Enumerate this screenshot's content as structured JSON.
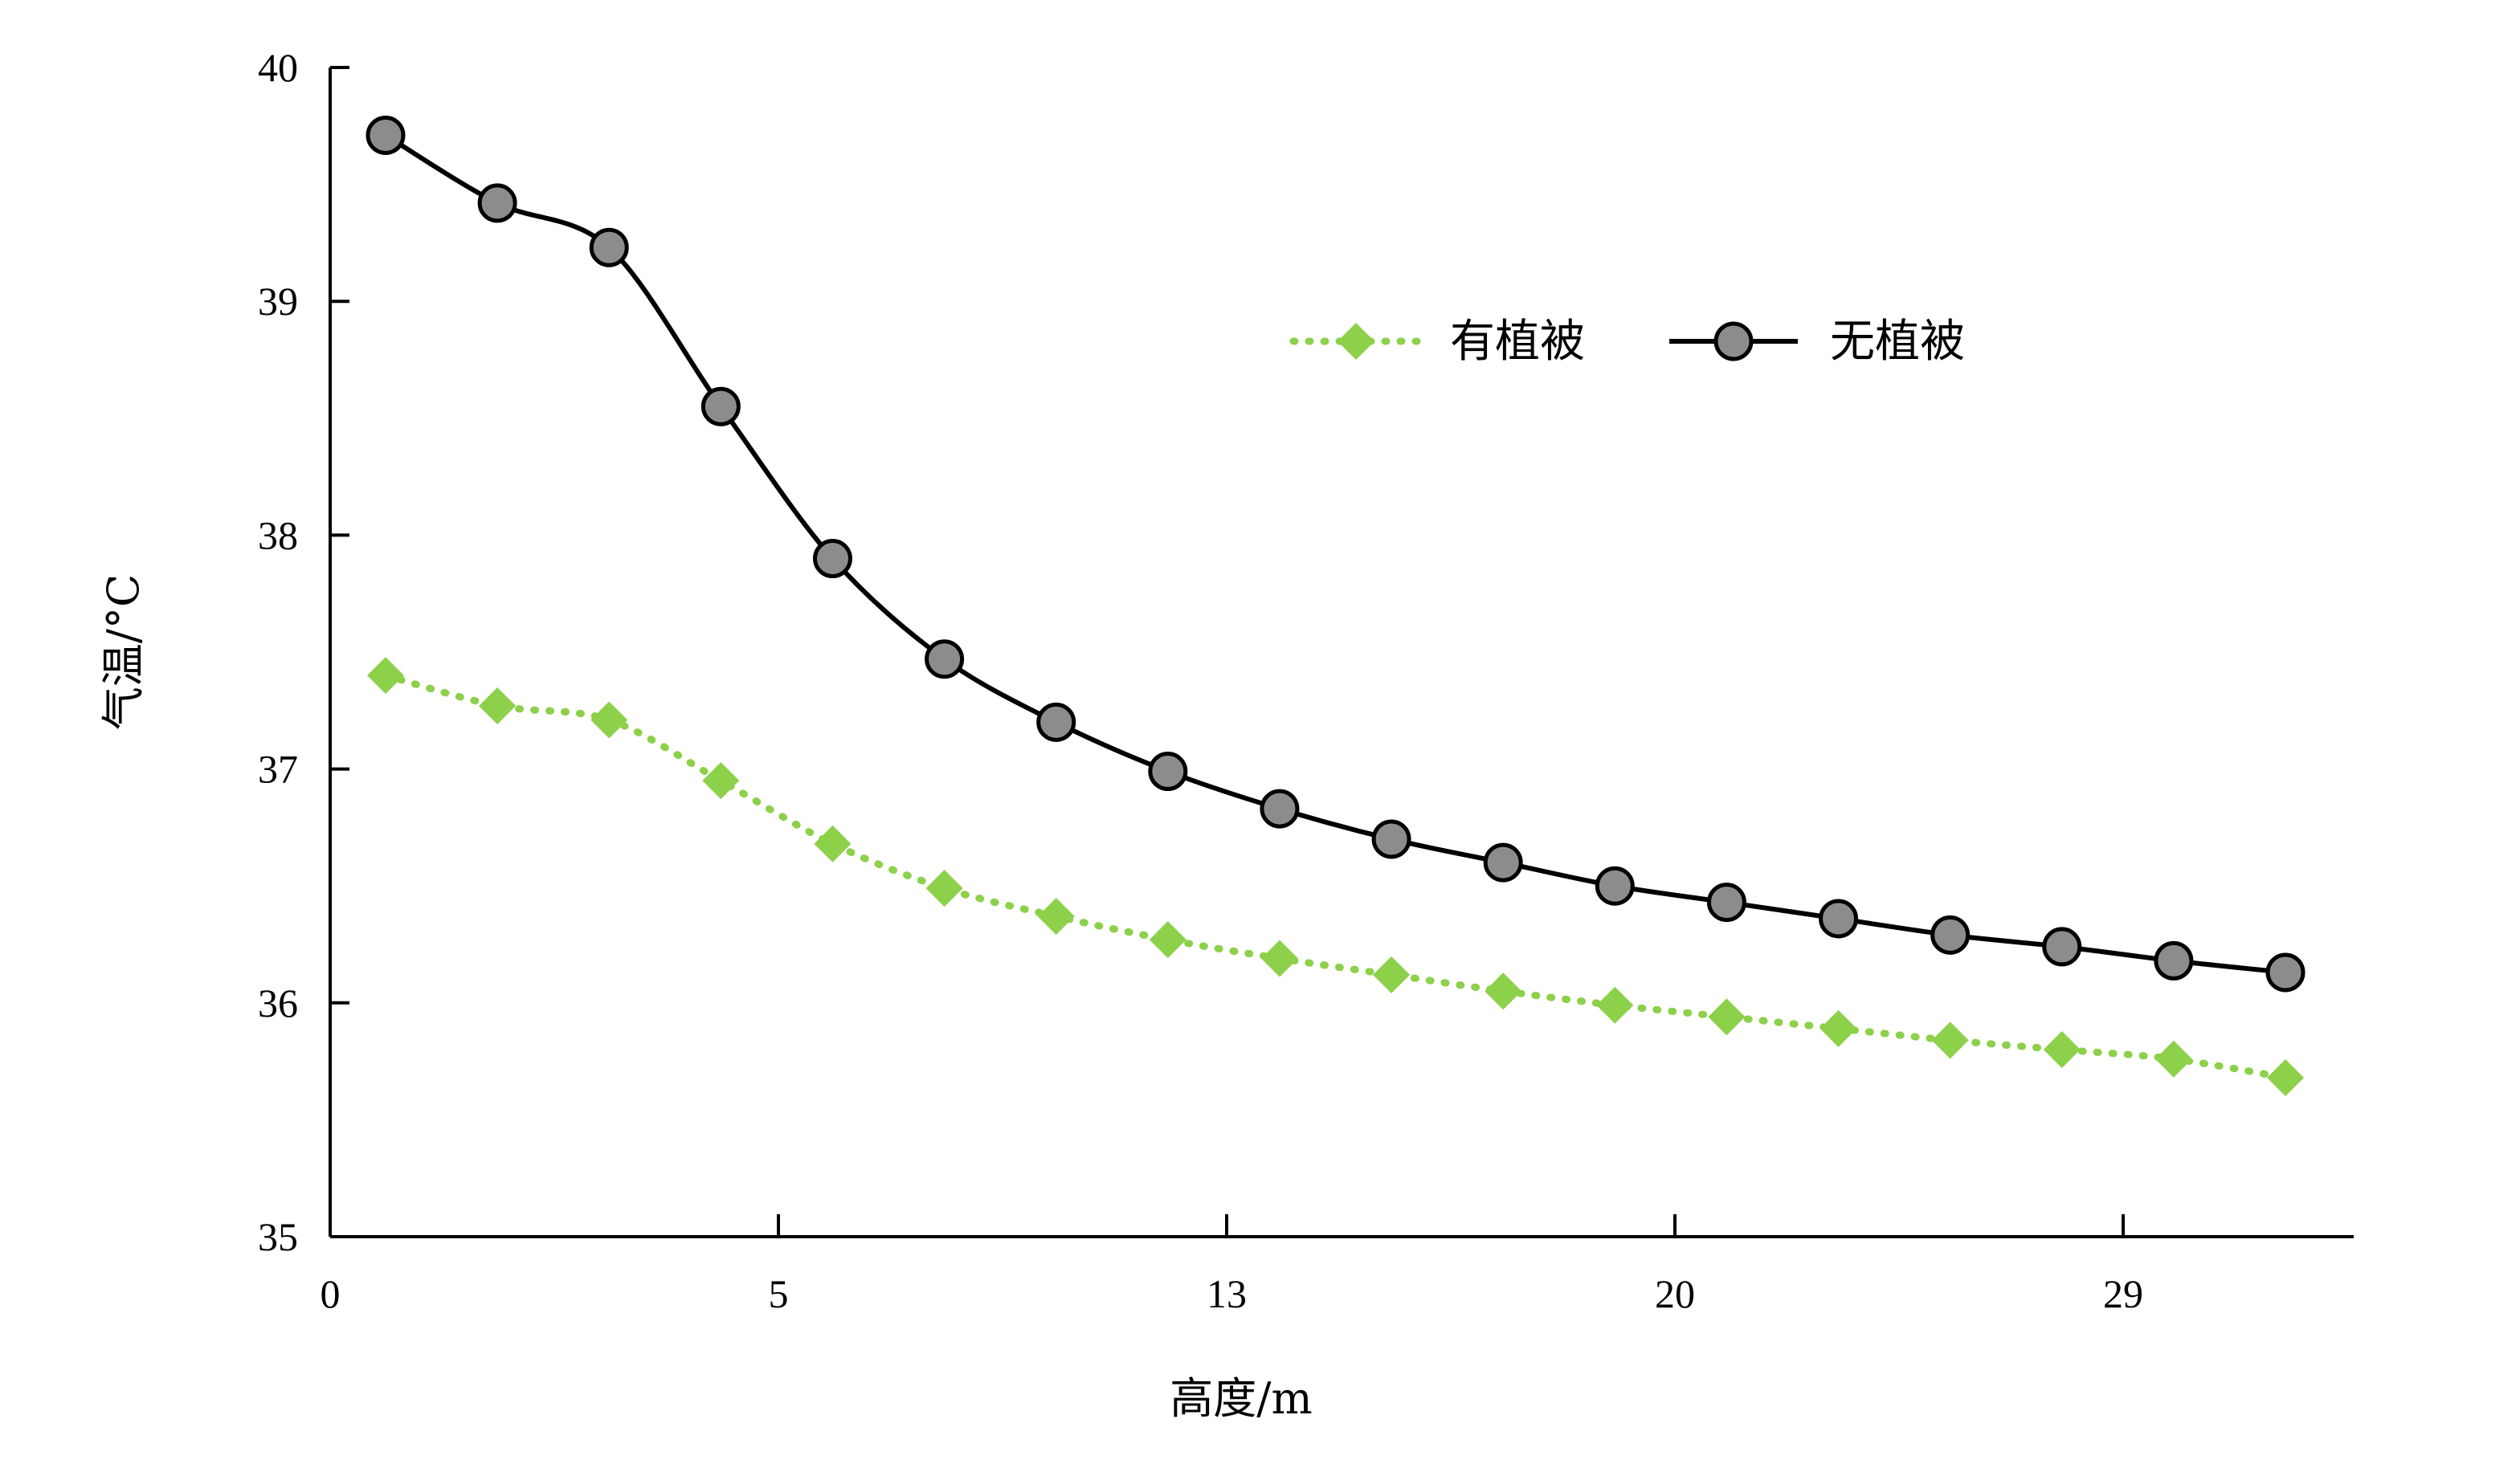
{
  "chart_data": {
    "type": "line",
    "title": "",
    "xlabel": "高度/m",
    "ylabel": "气温/°C",
    "ylim": [
      35,
      40
    ],
    "x_tick_labels": [
      "0",
      "5",
      "13",
      "20",
      "29"
    ],
    "y_tick_labels": [
      "35",
      "36",
      "37",
      "38",
      "39",
      "40"
    ],
    "grid": false,
    "legend_position": "top-right",
    "series": [
      {
        "name": "有植被",
        "color": "#8dd04a",
        "line_style": "dotted",
        "marker": "diamond",
        "values": [
          37.4,
          37.27,
          37.21,
          36.95,
          36.68,
          36.49,
          36.37,
          36.27,
          36.19,
          36.12,
          36.05,
          35.99,
          35.94,
          35.89,
          35.84,
          35.8,
          35.76,
          35.68
        ]
      },
      {
        "name": "无植被",
        "color": "#000000",
        "marker_fill": "#8c8c8c",
        "line_style": "solid",
        "marker": "circle",
        "values": [
          39.71,
          39.42,
          39.23,
          38.55,
          37.9,
          37.47,
          37.2,
          36.99,
          36.83,
          36.7,
          36.6,
          36.5,
          36.43,
          36.36,
          36.29,
          36.24,
          36.18,
          36.13
        ]
      }
    ]
  }
}
